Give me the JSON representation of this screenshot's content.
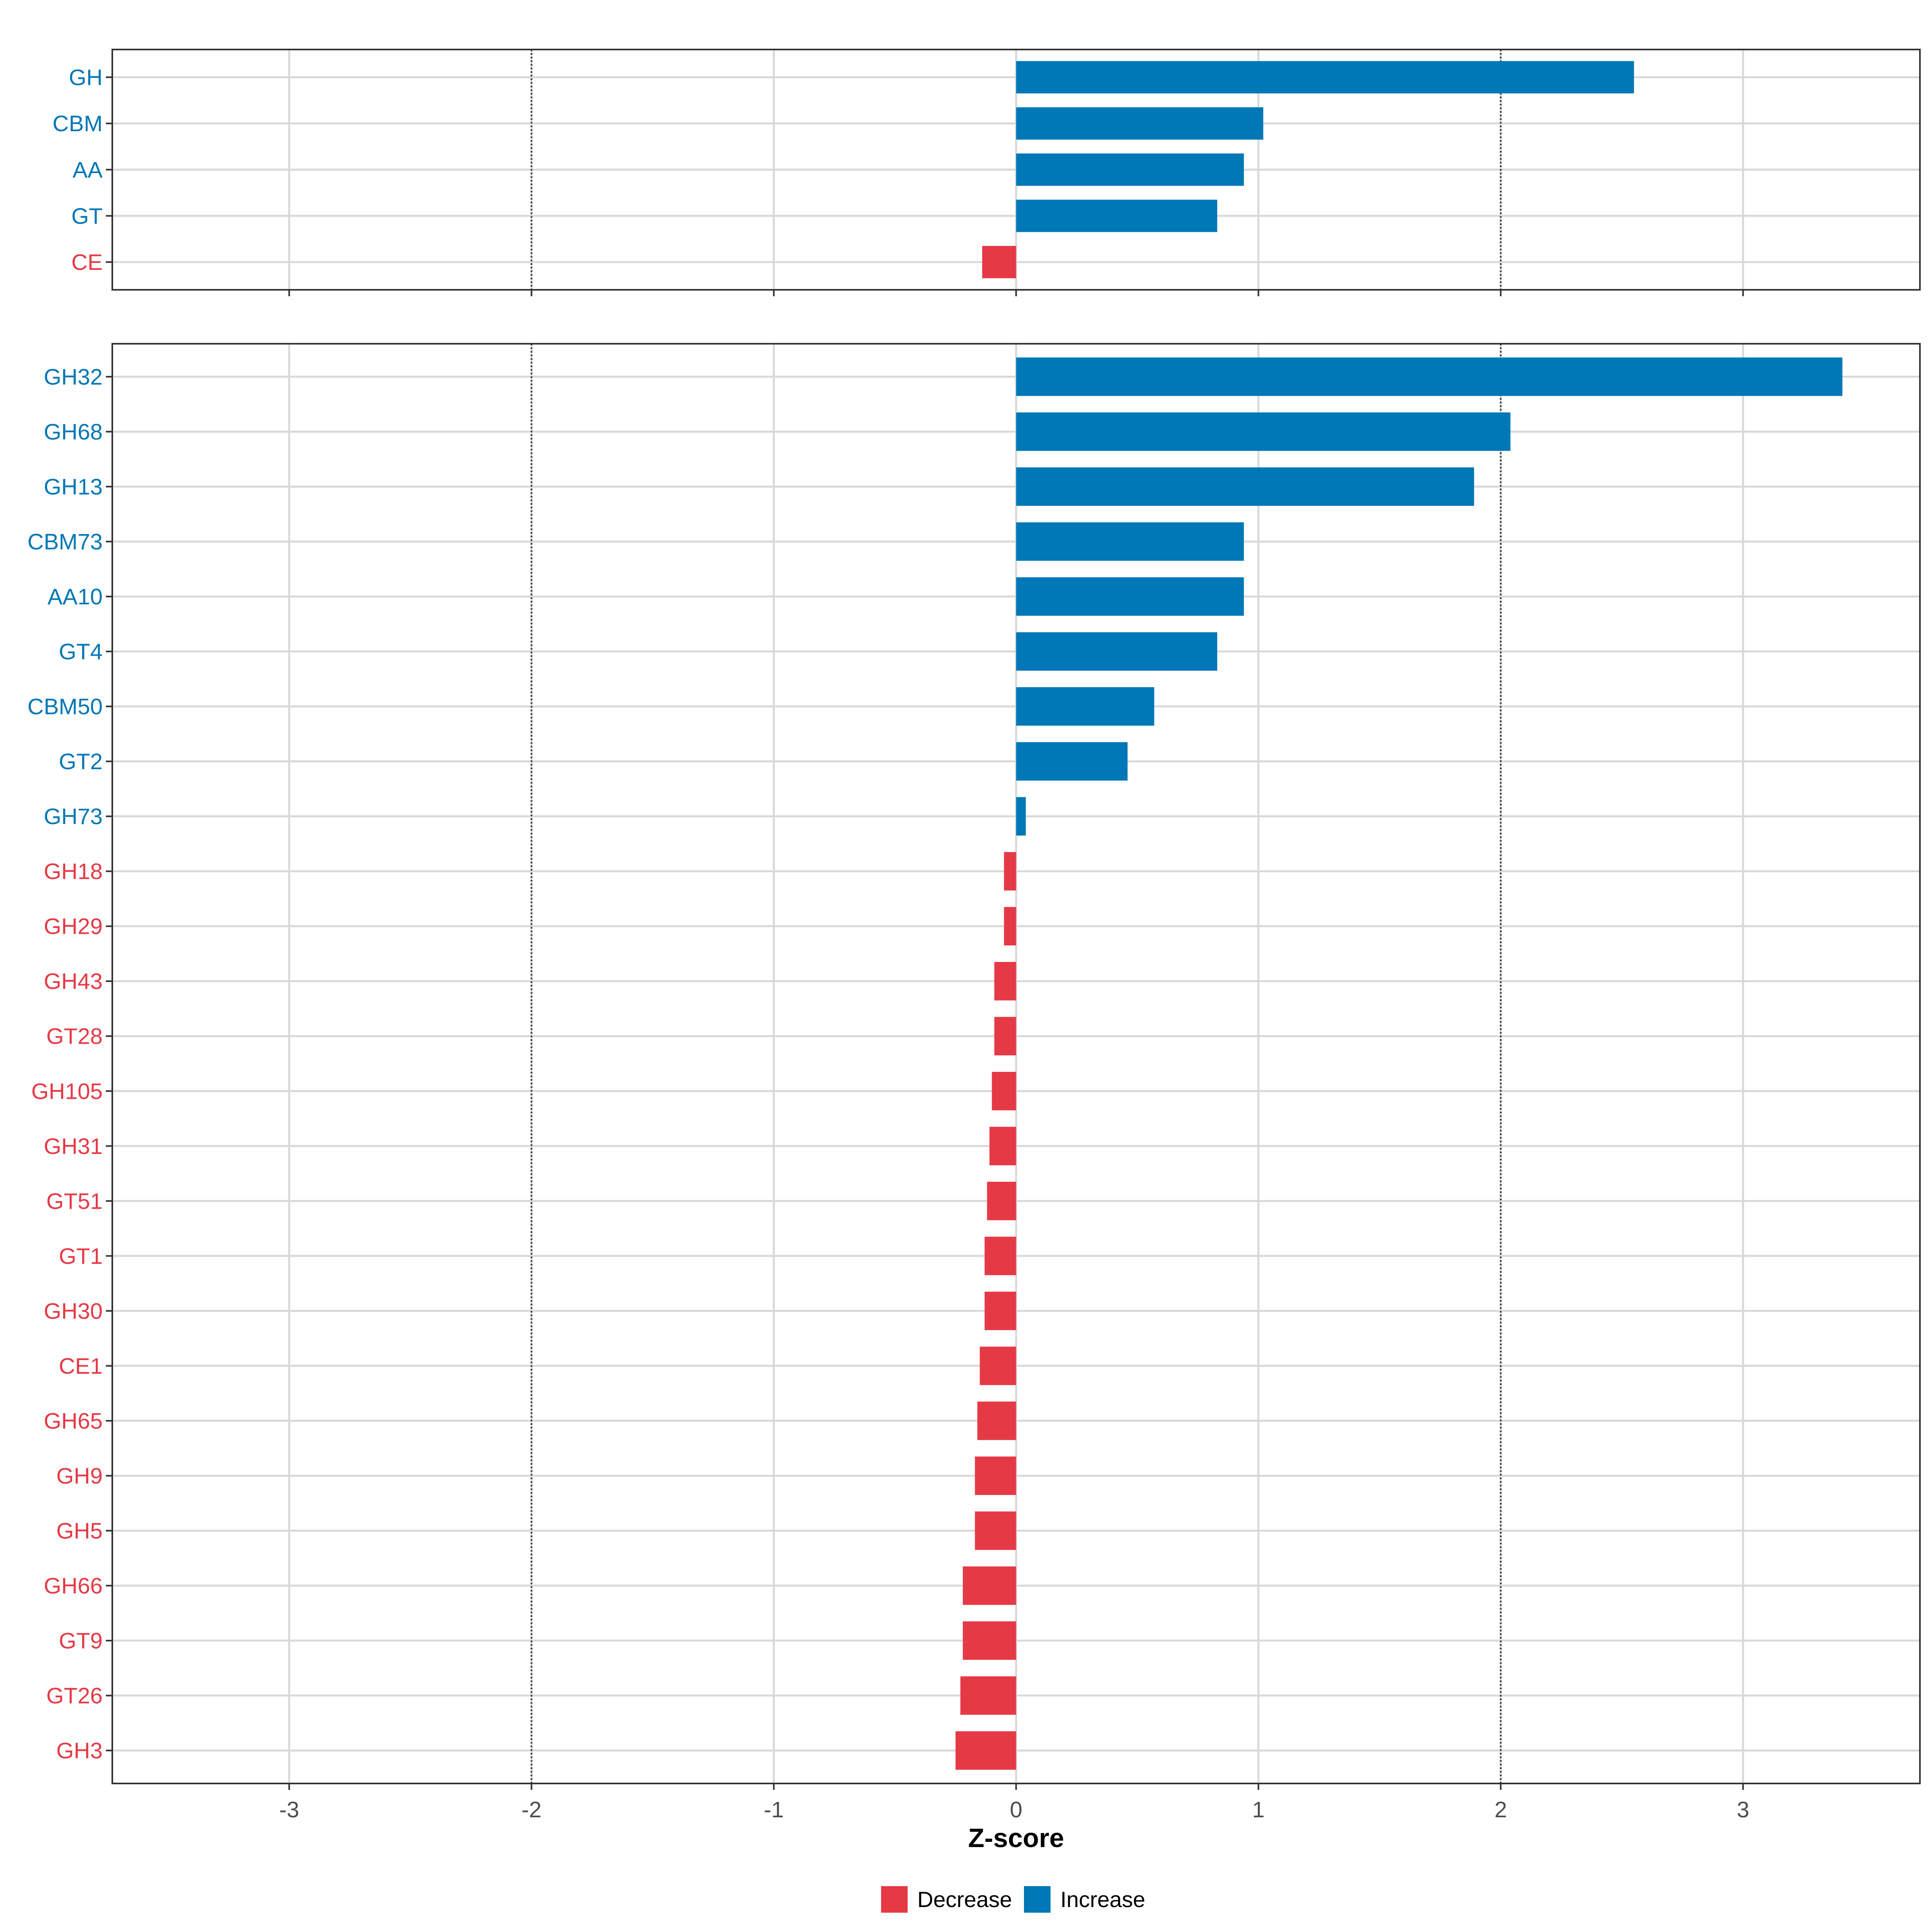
{
  "colors": {
    "increase": "#0077b6",
    "decrease": "#e63946"
  },
  "chart_data": [
    {
      "type": "bar",
      "orientation": "horizontal",
      "panel": "top",
      "categories": [
        "GH",
        "CBM",
        "AA",
        "GT",
        "CE"
      ],
      "values": [
        2.55,
        1.02,
        0.94,
        0.83,
        -0.14
      ],
      "xlim": [
        -3.73,
        3.73
      ],
      "xticks": [
        -3,
        -2,
        -1,
        0,
        1,
        2,
        3
      ],
      "reference_lines": [
        -2,
        2
      ]
    },
    {
      "type": "bar",
      "orientation": "horizontal",
      "panel": "bottom",
      "categories": [
        "GH32",
        "GH68",
        "GH13",
        "CBM73",
        "AA10",
        "GT4",
        "CBM50",
        "GT2",
        "GH73",
        "GH18",
        "GH29",
        "GH43",
        "GT28",
        "GH105",
        "GH31",
        "GT51",
        "GT1",
        "GH30",
        "CE1",
        "GH65",
        "GH9",
        "GH5",
        "GH66",
        "GT9",
        "GT26",
        "GH3"
      ],
      "values": [
        3.41,
        2.04,
        1.89,
        0.94,
        0.94,
        0.83,
        0.57,
        0.46,
        0.04,
        -0.05,
        -0.05,
        -0.09,
        -0.09,
        -0.1,
        -0.11,
        -0.12,
        -0.13,
        -0.13,
        -0.15,
        -0.16,
        -0.17,
        -0.17,
        -0.22,
        -0.22,
        -0.23,
        -0.25
      ],
      "xlim": [
        -3.73,
        3.73
      ],
      "xticks": [
        -3,
        -2,
        -1,
        0,
        1,
        2,
        3
      ],
      "xtick_labels": [
        "-3",
        "-2",
        "-1",
        "0",
        "1",
        "2",
        "3"
      ],
      "xlabel": "Z-score",
      "reference_lines": [
        -2,
        2
      ]
    }
  ],
  "legend": {
    "position": "bottom",
    "entries": [
      {
        "label": "Decrease",
        "color": "#e63946"
      },
      {
        "label": "Increase",
        "color": "#0077b6"
      }
    ]
  }
}
